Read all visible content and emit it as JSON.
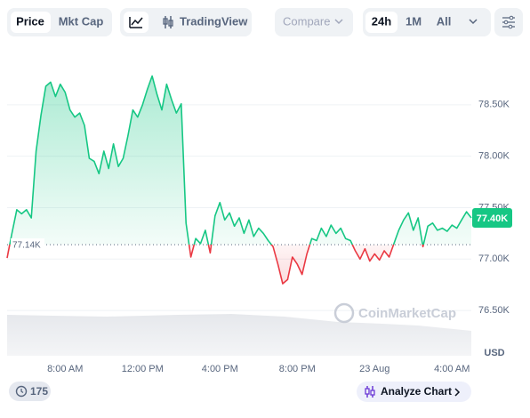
{
  "toolbar": {
    "price": "Price",
    "market_cap": "Mkt Cap",
    "trading_view": "TradingView",
    "compare": "Compare",
    "periods": [
      "24h",
      "1M",
      "All"
    ]
  },
  "watermark": "CoinMarketCap",
  "footer": {
    "events": 175,
    "analyze": "Analyze Chart"
  },
  "chart_data": {
    "type": "line",
    "currency": "USD",
    "x": [
      5,
      5.25,
      5.5,
      5.75,
      6,
      6.25,
      6.5,
      6.75,
      7,
      7.25,
      7.5,
      7.75,
      8,
      8.25,
      8.5,
      8.75,
      9,
      9.25,
      9.5,
      9.75,
      10,
      10.25,
      10.5,
      10.75,
      11,
      11.25,
      11.5,
      11.75,
      12,
      12.25,
      12.5,
      12.75,
      13,
      13.25,
      13.5,
      13.75,
      14,
      14.25,
      14.5,
      14.75,
      15,
      15.25,
      15.5,
      15.75,
      16,
      16.25,
      16.5,
      16.75,
      17,
      17.25,
      17.5,
      17.75,
      18,
      18.25,
      18.5,
      18.75,
      19,
      19.25,
      19.5,
      19.75,
      20,
      20.25,
      20.5,
      20.75,
      21,
      21.25,
      21.5,
      21.75,
      22,
      22.25,
      22.5,
      22.75,
      23,
      23.25,
      23.5,
      23.75,
      24,
      24.25,
      24.5,
      24.75,
      25,
      25.25,
      25.5,
      25.75,
      26,
      26.25,
      26.5,
      26.75,
      27,
      27.25,
      27.5,
      27.75,
      28,
      28.25,
      28.5,
      28.75,
      29
    ],
    "values": [
      77010,
      77250,
      77480,
      77440,
      77480,
      77400,
      78050,
      78400,
      78680,
      78720,
      78580,
      78700,
      78620,
      78450,
      78380,
      78420,
      78300,
      77980,
      77950,
      77830,
      78050,
      77880,
      78120,
      77900,
      77980,
      78200,
      78450,
      78380,
      78500,
      78650,
      78780,
      78600,
      78450,
      78700,
      78550,
      78420,
      78510,
      77350,
      77020,
      77200,
      77150,
      77280,
      77060,
      77420,
      77550,
      77380,
      77450,
      77320,
      77400,
      77250,
      77380,
      77220,
      77300,
      77250,
      77180,
      77120,
      76950,
      76760,
      76800,
      77020,
      76950,
      76850,
      77050,
      77200,
      77180,
      77300,
      77220,
      77330,
      77250,
      77300,
      77200,
      77180,
      77080,
      77000,
      77100,
      76980,
      77050,
      76990,
      77080,
      77020,
      77150,
      77280,
      77380,
      77450,
      77280,
      77400,
      77120,
      77320,
      77350,
      77280,
      77300,
      77270,
      77330,
      77300,
      77380,
      77460,
      77400
    ],
    "up_color": "#16c784",
    "down_color": "#ea3943",
    "reference": {
      "value": 77140,
      "label": "77.14K"
    },
    "current": {
      "value": 77400,
      "label": "77.40K"
    },
    "xlim": [
      5,
      29
    ],
    "xticks": [
      {
        "value": 8,
        "label": "8:00 AM"
      },
      {
        "value": 12,
        "label": "12:00 PM"
      },
      {
        "value": 16,
        "label": "4:00 PM"
      },
      {
        "value": 20,
        "label": "8:00 PM"
      },
      {
        "value": 24,
        "label": "23 Aug"
      },
      {
        "value": 28,
        "label": "4:00 AM"
      }
    ],
    "ylim": [
      76060,
      79000
    ],
    "yticks": [
      {
        "value": 76500,
        "label": "76.50K"
      },
      {
        "value": 77000,
        "label": "77.00K"
      },
      {
        "value": 77500,
        "label": "77.50K"
      },
      {
        "value": 78000,
        "label": "78.00K"
      },
      {
        "value": 78500,
        "label": "78.50K"
      }
    ],
    "grid": true
  }
}
